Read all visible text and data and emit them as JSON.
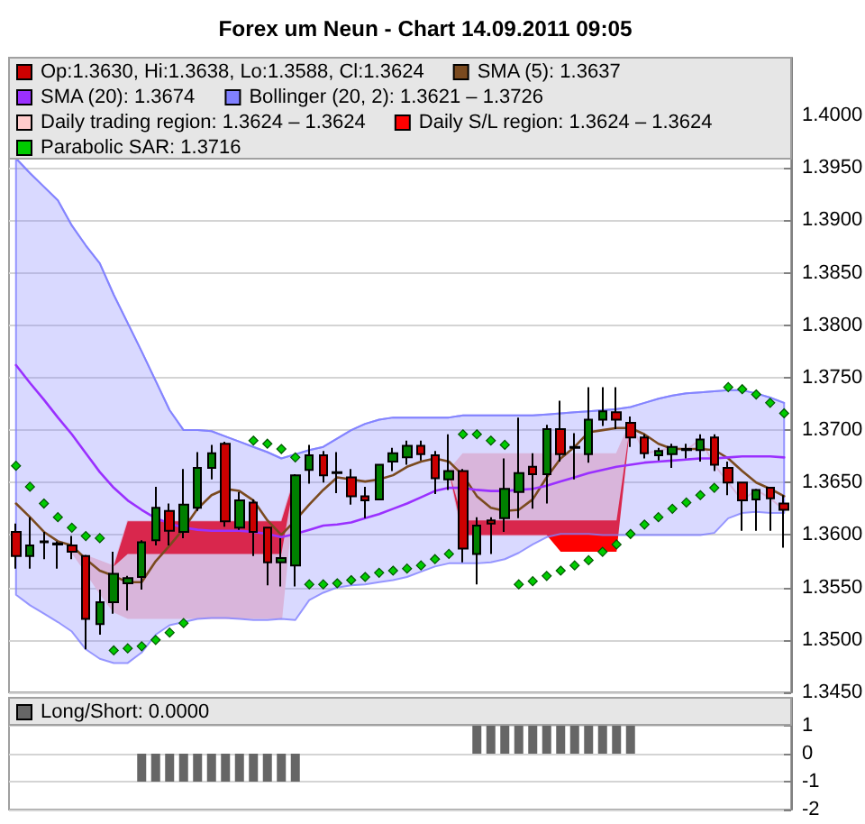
{
  "chart_data": [
    {
      "type": "candlestick",
      "title": "Forex um Neun - Chart 14.09.2011 09:05",
      "categories": [
        null,
        null,
        null,
        null,
        null,
        null,
        null,
        null,
        null,
        null,
        null,
        null,
        null,
        null,
        null,
        null,
        null,
        null,
        null,
        null,
        null,
        null,
        null,
        null,
        null,
        null,
        null,
        null,
        null,
        null,
        null,
        null,
        null,
        null,
        null,
        null,
        null,
        null,
        null,
        null,
        null,
        null,
        null,
        null,
        null,
        null,
        null,
        null,
        null,
        null,
        null,
        null,
        null,
        null,
        null,
        null
      ],
      "series": [
        {
          "name": "Op:1.3630, Hi:1.3638, Lo:1.3588, Cl:1.3624",
          "color": "#cc0000",
          "colors": [
            "#cc0000",
            "#008000",
            "#000000",
            "#000000",
            "#cc0000",
            "#cc0000",
            "#008000",
            "#008000",
            "#008000",
            "#008000",
            "#008000",
            "#cc0000",
            "#008000",
            "#008000",
            "#008000",
            "#cc0000",
            "#008000",
            "#cc0000",
            "#cc0000",
            "#008000",
            "#008000",
            "#008000",
            "#cc0000",
            "#000000",
            "#cc0000",
            "#cc0000",
            "#008000",
            "#008000",
            "#008000",
            "#cc0000",
            "#cc0000",
            "#008000",
            "#cc0000",
            "#008000",
            "#cc0000",
            "#008000",
            "#008000",
            "#cc0000",
            "#008000",
            "#cc0000",
            "#000000",
            "#008000",
            "#008000",
            "#cc0000",
            "#cc0000",
            "#cc0000",
            "#008000",
            "#008000",
            "#000000",
            "#008000",
            "#cc0000",
            "#cc0000",
            "#cc0000",
            "#008000",
            "#cc0000",
            "#cc0000"
          ],
          "ohlc": [
            [
              1.3603,
              1.3611,
              1.3568,
              1.358
            ],
            [
              1.358,
              1.3617,
              1.3568,
              1.359
            ],
            [
              1.3594,
              1.3603,
              1.3577,
              1.3593
            ],
            [
              1.3592,
              1.3594,
              1.3568,
              1.3591
            ],
            [
              1.359,
              1.3599,
              1.3577,
              1.3584
            ],
            [
              1.358,
              1.3581,
              1.3491,
              1.352
            ],
            [
              1.3515,
              1.3548,
              1.3505,
              1.3536
            ],
            [
              1.3536,
              1.3584,
              1.3525,
              1.3563
            ],
            [
              1.3554,
              1.3561,
              1.3528,
              1.3559
            ],
            [
              1.356,
              1.3595,
              1.3548,
              1.3593
            ],
            [
              1.3595,
              1.3646,
              1.359,
              1.3626
            ],
            [
              1.3623,
              1.363,
              1.359,
              1.3604
            ],
            [
              1.3603,
              1.3663,
              1.3597,
              1.3629
            ],
            [
              1.3626,
              1.3679,
              1.3623,
              1.3664
            ],
            [
              1.3664,
              1.3686,
              1.3653,
              1.3678
            ],
            [
              1.3687,
              1.3689,
              1.3608,
              1.3613
            ],
            [
              1.3607,
              1.3641,
              1.3605,
              1.3633
            ],
            [
              1.3631,
              1.3634,
              1.358,
              1.3603
            ],
            [
              1.3607,
              1.3608,
              1.3552,
              1.3574
            ],
            [
              1.3574,
              1.3597,
              1.3551,
              1.3578
            ],
            [
              1.3571,
              1.3658,
              1.3551,
              1.3657
            ],
            [
              1.3662,
              1.3686,
              1.3649,
              1.3676
            ],
            [
              1.3676,
              1.368,
              1.365,
              1.3657
            ],
            [
              1.366,
              1.3679,
              1.364,
              1.3659
            ],
            [
              1.3655,
              1.3663,
              1.3629,
              1.3637
            ],
            [
              1.3637,
              1.3646,
              1.3616,
              1.3633
            ],
            [
              1.3634,
              1.3667,
              1.3633,
              1.3667
            ],
            [
              1.367,
              1.3683,
              1.3661,
              1.3678
            ],
            [
              1.3674,
              1.369,
              1.3667,
              1.3685
            ],
            [
              1.3685,
              1.369,
              1.3671,
              1.3677
            ],
            [
              1.3676,
              1.368,
              1.3639,
              1.3654
            ],
            [
              1.3653,
              1.3696,
              1.3643,
              1.3661
            ],
            [
              1.3661,
              1.3663,
              1.3574,
              1.3587
            ],
            [
              1.3582,
              1.3617,
              1.3553,
              1.3609
            ],
            [
              1.3614,
              1.3617,
              1.3582,
              1.3611
            ],
            [
              1.3616,
              1.3673,
              1.3603,
              1.3644
            ],
            [
              1.3641,
              1.3712,
              1.3616,
              1.3659
            ],
            [
              1.3665,
              1.3678,
              1.3625,
              1.3658
            ],
            [
              1.3658,
              1.3705,
              1.363,
              1.3701
            ],
            [
              1.3701,
              1.3728,
              1.367,
              1.3677
            ],
            [
              1.3684,
              1.3697,
              1.3653,
              1.3683
            ],
            [
              1.3677,
              1.3741,
              1.3669,
              1.371
            ],
            [
              1.371,
              1.3741,
              1.3704,
              1.3718
            ],
            [
              1.3717,
              1.3741,
              1.3701,
              1.371
            ],
            [
              1.3707,
              1.3713,
              1.3684,
              1.3693
            ],
            [
              1.3693,
              1.3696,
              1.3673,
              1.3678
            ],
            [
              1.3676,
              1.3683,
              1.3671,
              1.368
            ],
            [
              1.3677,
              1.3687,
              1.3664,
              1.3684
            ],
            [
              1.3682,
              1.3687,
              1.3673,
              1.3681
            ],
            [
              1.3681,
              1.3696,
              1.367,
              1.3691
            ],
            [
              1.3693,
              1.3696,
              1.3661,
              1.3667
            ],
            [
              1.3664,
              1.367,
              1.3638,
              1.365
            ],
            [
              1.365,
              1.365,
              1.3604,
              1.3633
            ],
            [
              1.3634,
              1.3644,
              1.3604,
              1.3643
            ],
            [
              1.3645,
              1.3645,
              1.3604,
              1.3635
            ],
            [
              1.363,
              1.3638,
              1.3588,
              1.3624
            ]
          ]
        },
        {
          "name": "SMA (5): 1.3637",
          "type": "line",
          "color": "#7a4a1f",
          "values": [
            1.363,
            1.3617,
            1.3603,
            1.3594,
            1.359,
            1.3577,
            1.3566,
            1.3561,
            1.3555,
            1.3555,
            1.3575,
            1.359,
            1.3606,
            1.3625,
            1.3638,
            1.3644,
            1.3642,
            1.3633,
            1.3614,
            1.36,
            1.3614,
            1.3629,
            1.3643,
            1.3655,
            1.3653,
            1.3651,
            1.3653,
            1.3657,
            1.3665,
            1.367,
            1.3673,
            1.367,
            1.3657,
            1.3637,
            1.3626,
            1.3623,
            1.3624,
            1.3634,
            1.3655,
            1.3673,
            1.3684,
            1.3698,
            1.37,
            1.3702,
            1.3702,
            1.3696,
            1.3687,
            1.3682,
            1.3682,
            1.3682,
            1.3681,
            1.3673,
            1.3661,
            1.365,
            1.3644,
            1.3637
          ]
        },
        {
          "name": "SMA (20): 1.3674",
          "type": "line",
          "color": "#9a30ff",
          "values": [
            1.3762,
            1.3745,
            1.3729,
            1.3712,
            1.3696,
            1.3678,
            1.366,
            1.3645,
            1.3633,
            1.3624,
            1.3616,
            1.3611,
            1.3607,
            1.3605,
            1.3604,
            1.3604,
            1.3604,
            1.3603,
            1.3601,
            1.3598,
            1.3601,
            1.3605,
            1.3609,
            1.361,
            1.3612,
            1.3616,
            1.362,
            1.3625,
            1.363,
            1.3636,
            1.3642,
            1.3645,
            1.3645,
            1.3643,
            1.3642,
            1.3642,
            1.3643,
            1.3644,
            1.3647,
            1.3651,
            1.3655,
            1.3659,
            1.3662,
            1.3665,
            1.3667,
            1.3669,
            1.367,
            1.3671,
            1.3672,
            1.3673,
            1.3673,
            1.3674,
            1.3675,
            1.3675,
            1.3675,
            1.3674
          ]
        },
        {
          "name": "Bollinger (20, 2): 1.3621 – 1.3726",
          "type": "line",
          "color": "#8080ff",
          "values": [
            1.3959,
            1.3945,
            1.3932,
            1.3919,
            1.3895,
            1.3876,
            1.3859,
            1.3829,
            1.3802,
            1.3775,
            1.3747,
            1.3719,
            1.37,
            1.37,
            1.3699,
            1.3694,
            1.3689,
            1.3684,
            1.3679,
            1.3673,
            1.3677,
            1.3681,
            1.3684,
            1.3692,
            1.37,
            1.3706,
            1.371,
            1.3712,
            1.3712,
            1.3712,
            1.3712,
            1.3712,
            1.3714,
            1.3714,
            1.3714,
            1.3714,
            1.3714,
            1.3714,
            1.3715,
            1.3716,
            1.3717,
            1.3718,
            1.3719,
            1.372,
            1.3722,
            1.3726,
            1.373,
            1.3733,
            1.3735,
            1.3736,
            1.3737,
            1.3738,
            1.3738,
            1.3735,
            1.3731,
            1.3726
          ],
          "upper": [
            1.3959,
            1.3945,
            1.3932,
            1.3919,
            1.3895,
            1.3876,
            1.3859,
            1.3829,
            1.3802,
            1.3775,
            1.3747,
            1.3719,
            1.37,
            1.37,
            1.3699,
            1.3694,
            1.3689,
            1.3684,
            1.3679,
            1.3673,
            1.3677,
            1.3681,
            1.3684,
            1.3692,
            1.37,
            1.3706,
            1.371,
            1.3712,
            1.3712,
            1.3712,
            1.3712,
            1.3712,
            1.3714,
            1.3714,
            1.3714,
            1.3714,
            1.3714,
            1.3714,
            1.3715,
            1.3716,
            1.3717,
            1.3718,
            1.3719,
            1.372,
            1.3722,
            1.3726,
            1.373,
            1.3733,
            1.3735,
            1.3736,
            1.3737,
            1.3738,
            1.3738,
            1.3735,
            1.3731,
            1.3726
          ],
          "lower": [
            1.3543,
            1.3533,
            1.3525,
            1.3517,
            1.3508,
            1.3491,
            1.3482,
            1.3478,
            1.3478,
            1.3488,
            1.3505,
            1.3514,
            1.3517,
            1.352,
            1.3521,
            1.3521,
            1.352,
            1.3519,
            1.3519,
            1.352,
            1.3519,
            1.3538,
            1.3545,
            1.355,
            1.3552,
            1.3553,
            1.3555,
            1.3557,
            1.356,
            1.3565,
            1.357,
            1.3573,
            1.3573,
            1.3573,
            1.3574,
            1.3577,
            1.3583,
            1.3591,
            1.3598,
            1.3601,
            1.3601,
            1.3601,
            1.36,
            1.36,
            1.36,
            1.36,
            1.36,
            1.36,
            1.36,
            1.36,
            1.3602,
            1.3616,
            1.3621,
            1.3622,
            1.3621,
            1.3621
          ]
        },
        {
          "name": "Daily trading region: 1.3624 – 1.3624",
          "type": "line",
          "color": "#ffcccc",
          "values": [
            null,
            null,
            null,
            null,
            null,
            null,
            null,
            null,
            null,
            null,
            null,
            null,
            null,
            null,
            null,
            null,
            null,
            null,
            null,
            null,
            null,
            null,
            null,
            null,
            null,
            null,
            null,
            null,
            null,
            null,
            null,
            null,
            null,
            null,
            null,
            null,
            null,
            null,
            null,
            null,
            null,
            null,
            null,
            null,
            null,
            null,
            null,
            null,
            null,
            null,
            null,
            null,
            null,
            null,
            null,
            null
          ],
          "upper": [
            null,
            null,
            null,
            null,
            1.3584,
            1.358,
            1.3575,
            1.357,
            1.3613,
            1.3613,
            1.3613,
            1.3613,
            1.3613,
            1.3613,
            1.3613,
            1.3613,
            1.3613,
            1.3613,
            1.3613,
            1.3613,
            1.3657,
            null,
            null,
            null,
            null,
            null,
            null,
            null,
            null,
            null,
            null,
            1.3661,
            1.3677,
            1.3677,
            1.3677,
            1.3677,
            1.3677,
            1.3677,
            1.3677,
            1.3677,
            1.3677,
            1.3677,
            1.3677,
            1.3677,
            1.3707,
            1.3678,
            1.368,
            1.3684,
            1.3681,
            1.3691,
            1.3667,
            1.365,
            1.3633,
            1.3643,
            1.3635,
            1.3624
          ],
          "lower": [
            null,
            null,
            null,
            null,
            1.3584,
            1.3565,
            1.3545,
            1.3527,
            1.3521,
            1.3521,
            1.3521,
            1.3521,
            1.3521,
            1.3521,
            1.3521,
            1.3521,
            1.3521,
            1.3521,
            1.3521,
            1.3521,
            1.3657,
            null,
            null,
            null,
            null,
            null,
            null,
            null,
            null,
            null,
            null,
            1.3661,
            1.36,
            1.36,
            1.36,
            1.36,
            1.36,
            1.36,
            1.36,
            1.36,
            1.36,
            1.36,
            1.36,
            1.36,
            1.3707,
            1.3678,
            1.368,
            1.3684,
            1.3681,
            1.3691,
            1.3667,
            1.365,
            1.3633,
            1.3643,
            1.3635,
            1.3624
          ]
        },
        {
          "name": "Daily S/L region: 1.3624 – 1.3624",
          "type": "line",
          "color": "#ff0000",
          "values": [
            null,
            null,
            null,
            null,
            null,
            null,
            null,
            null,
            null,
            null,
            null,
            null,
            null,
            null,
            null,
            null,
            null,
            null,
            null,
            null,
            null,
            null,
            null,
            null,
            null,
            null,
            null,
            null,
            null,
            null,
            null,
            null,
            null,
            null,
            null,
            null,
            null,
            null,
            null,
            null,
            null,
            null,
            null,
            null,
            null,
            null,
            null,
            null,
            null,
            null,
            null,
            null,
            null,
            null,
            null,
            null
          ],
          "upper": [
            null,
            null,
            null,
            null,
            null,
            null,
            null,
            1.357,
            1.3613,
            1.3613,
            1.3613,
            1.3613,
            1.3613,
            1.3613,
            1.3613,
            1.3613,
            1.3613,
            1.3613,
            1.3613,
            1.3613,
            1.3657,
            null,
            null,
            null,
            null,
            null,
            null,
            null,
            null,
            null,
            null,
            1.3661,
            1.3614,
            1.3614,
            1.3614,
            1.3614,
            1.3614,
            1.3614,
            1.3614,
            1.3614,
            1.3614,
            1.3614,
            1.3614,
            1.3614,
            1.3707,
            null,
            null,
            null,
            null,
            null,
            null,
            null,
            null,
            null,
            null,
            null
          ],
          "lower": [
            null,
            null,
            null,
            null,
            null,
            null,
            null,
            1.357,
            1.3582,
            1.3582,
            1.3582,
            1.3582,
            1.3582,
            1.3582,
            1.3582,
            1.3582,
            1.3582,
            1.3582,
            1.3582,
            1.3582,
            1.3657,
            null,
            null,
            null,
            null,
            null,
            null,
            null,
            null,
            null,
            null,
            1.3661,
            1.36,
            1.36,
            1.36,
            1.36,
            1.36,
            1.36,
            1.36,
            1.3584,
            1.3584,
            1.3584,
            1.3584,
            1.3584,
            1.3707,
            null,
            null,
            null,
            null,
            null,
            null,
            null,
            null,
            null,
            null,
            null
          ]
        },
        {
          "name": "Parabolic SAR: 1.3716",
          "type": "scatter",
          "color": "#00cc00",
          "marker": "diamond",
          "values": [
            1.3666,
            1.3646,
            1.363,
            1.3617,
            1.3607,
            1.3599,
            1.3597,
            1.349,
            1.3492,
            1.3494,
            1.35,
            1.3507,
            1.3516,
            null,
            null,
            null,
            null,
            1.369,
            1.3687,
            1.3682,
            1.3674,
            1.3553,
            1.3553,
            1.3554,
            1.3557,
            1.356,
            1.3564,
            1.3566,
            1.3568,
            1.3571,
            1.3577,
            1.3582,
            1.3696,
            1.3696,
            1.369,
            1.3686,
            1.3553,
            1.3556,
            1.3561,
            1.3566,
            1.3571,
            1.3576,
            1.3584,
            1.3591,
            1.3601,
            1.361,
            1.3617,
            1.3625,
            1.3631,
            1.3638,
            1.3645,
            1.3741,
            1.3739,
            1.3734,
            1.3726,
            1.3716
          ]
        }
      ],
      "ylim": [
        1.345,
        1.4055
      ],
      "yticks": [
        {
          "value": 1.345,
          "label": "1.3450"
        },
        {
          "value": 1.35,
          "label": "1.3500"
        },
        {
          "value": 1.355,
          "label": "1.3550"
        },
        {
          "value": 1.36,
          "label": "1.3600"
        },
        {
          "value": 1.365,
          "label": "1.3650"
        },
        {
          "value": 1.37,
          "label": "1.3700"
        },
        {
          "value": 1.375,
          "label": "1.3750"
        },
        {
          "value": 1.38,
          "label": "1.3800"
        },
        {
          "value": 1.385,
          "label": "1.3850"
        },
        {
          "value": 1.39,
          "label": "1.3900"
        },
        {
          "value": 1.395,
          "label": "1.3950"
        },
        {
          "value": 1.4,
          "label": "1.4000"
        }
      ],
      "grid": "y",
      "legend": "top left",
      "tick_labels": "y"
    },
    {
      "type": "bar",
      "categories": [
        null,
        null,
        null,
        null,
        null,
        null,
        null,
        null,
        null,
        null,
        null,
        null,
        null,
        null,
        null,
        null,
        null,
        null,
        null,
        null,
        null,
        null,
        null,
        null,
        null,
        null,
        null,
        null,
        null,
        null,
        null,
        null,
        null,
        null,
        null,
        null,
        null,
        null,
        null,
        null,
        null,
        null,
        null,
        null,
        null,
        null,
        null,
        null,
        null,
        null,
        null,
        null,
        null,
        null,
        null,
        null
      ],
      "series": [
        {
          "name": "Long/Short: 0.0000",
          "color": "#666666",
          "values": [
            0,
            0,
            0,
            0,
            0,
            0,
            0,
            0,
            0,
            -1,
            -1,
            -1,
            -1,
            -1,
            -1,
            -1,
            -1,
            -1,
            -1,
            -1,
            -1,
            0,
            0,
            0,
            0,
            0,
            0,
            0,
            0,
            0,
            0,
            0,
            0,
            1,
            1,
            1,
            1,
            1,
            1,
            1,
            1,
            1,
            1,
            1,
            1,
            0,
            0,
            0,
            0,
            0,
            0,
            0,
            0,
            0,
            0,
            0
          ]
        }
      ],
      "ylim": [
        -2,
        2
      ],
      "yticks": [
        -2,
        -1,
        0,
        1
      ],
      "grid": "y",
      "legend": "top left",
      "tick_labels": "y"
    }
  ]
}
